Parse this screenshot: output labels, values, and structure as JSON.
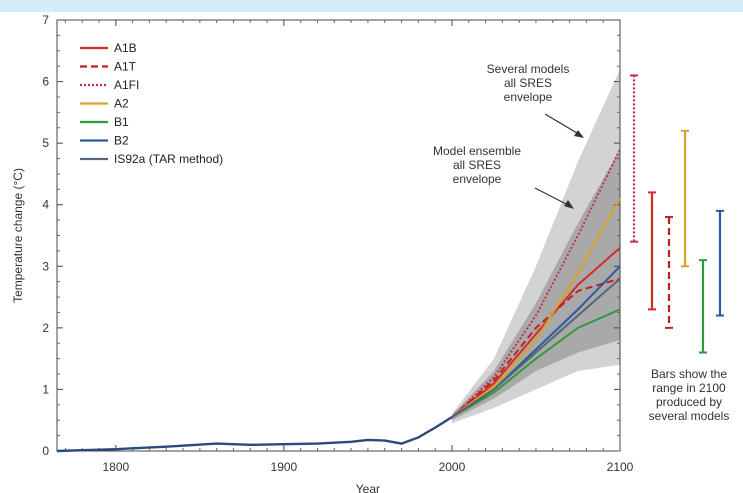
{
  "chart_data": {
    "type": "line",
    "title": "",
    "xlabel": "Year",
    "ylabel": "Temperature change (°C)",
    "xlim": [
      1765,
      2100
    ],
    "ylim": [
      0,
      7
    ],
    "x_ticks": [
      1800,
      1900,
      2000,
      2100
    ],
    "y_ticks": [
      0,
      1,
      2,
      3,
      4,
      5,
      6,
      7
    ],
    "legend_position": "top-left",
    "historical": {
      "x": [
        1765,
        1800,
        1830,
        1860,
        1880,
        1900,
        1920,
        1940,
        1950,
        1960,
        1970,
        1980,
        1990,
        2000
      ],
      "y": [
        0.0,
        0.03,
        0.07,
        0.12,
        0.1,
        0.11,
        0.12,
        0.15,
        0.18,
        0.17,
        0.12,
        0.22,
        0.38,
        0.55
      ]
    },
    "series": [
      {
        "name": "A1B",
        "style": "solid",
        "color": "#d62a2a",
        "x": [
          2000,
          2025,
          2050,
          2075,
          2100
        ],
        "y": [
          0.55,
          1.1,
          1.9,
          2.7,
          3.3
        ]
      },
      {
        "name": "A1T",
        "style": "dashed",
        "color": "#c41f1f",
        "x": [
          2000,
          2025,
          2050,
          2075,
          2100
        ],
        "y": [
          0.55,
          1.15,
          2.0,
          2.6,
          2.8
        ]
      },
      {
        "name": "A1FI",
        "style": "dotted",
        "color": "#c0304f",
        "x": [
          2000,
          2025,
          2050,
          2075,
          2100
        ],
        "y": [
          0.55,
          1.2,
          2.2,
          3.5,
          4.9
        ]
      },
      {
        "name": "A2",
        "style": "solid",
        "color": "#d6a22a",
        "x": [
          2000,
          2025,
          2050,
          2075,
          2100
        ],
        "y": [
          0.55,
          1.05,
          1.8,
          2.9,
          4.1
        ]
      },
      {
        "name": "B1",
        "style": "solid",
        "color": "#2f9a3a",
        "x": [
          2000,
          2025,
          2050,
          2075,
          2100
        ],
        "y": [
          0.55,
          0.95,
          1.5,
          2.0,
          2.3
        ]
      },
      {
        "name": "B2",
        "style": "solid",
        "color": "#2a5aa6",
        "x": [
          2000,
          2025,
          2050,
          2075,
          2100
        ],
        "y": [
          0.55,
          1.0,
          1.65,
          2.3,
          3.0
        ]
      },
      {
        "name": "IS92a (TAR method)",
        "style": "solid",
        "color": "#556677",
        "x": [
          2000,
          2025,
          2050,
          2075,
          2100
        ],
        "y": [
          0.55,
          1.0,
          1.6,
          2.2,
          2.8
        ]
      }
    ],
    "envelopes": [
      {
        "name": "Several models all SRES envelope",
        "color": "#d3d3d3",
        "x": [
          2000,
          2025,
          2050,
          2075,
          2100
        ],
        "lower": [
          0.45,
          0.7,
          1.0,
          1.3,
          1.4
        ],
        "upper": [
          0.6,
          1.5,
          3.0,
          4.7,
          6.2
        ]
      },
      {
        "name": "Model ensemble all SRES envelope",
        "color": "#a9a9a9",
        "x": [
          2000,
          2025,
          2050,
          2075,
          2100
        ],
        "lower": [
          0.5,
          0.85,
          1.3,
          1.6,
          1.8
        ],
        "upper": [
          0.58,
          1.3,
          2.4,
          3.7,
          4.9
        ]
      }
    ],
    "bars_2100": [
      {
        "name": "A1FI",
        "style": "dotted",
        "color": "#c0304f",
        "low": 3.4,
        "high": 6.1
      },
      {
        "name": "A1B",
        "style": "solid",
        "color": "#d62a2a",
        "low": 2.3,
        "high": 4.2
      },
      {
        "name": "A1T",
        "style": "dashed",
        "color": "#c41f1f",
        "low": 2.0,
        "high": 3.8
      },
      {
        "name": "A2",
        "style": "solid",
        "color": "#d6a22a",
        "low": 3.0,
        "high": 5.2
      },
      {
        "name": "B1",
        "style": "solid",
        "color": "#2f9a3a",
        "low": 1.6,
        "high": 3.1
      },
      {
        "name": "B2",
        "style": "solid",
        "color": "#2a5aa6",
        "low": 2.2,
        "high": 3.9
      }
    ],
    "annotations": {
      "several_models": [
        "Several models",
        "all SRES",
        "envelope"
      ],
      "model_ensemble": [
        "Model ensemble",
        "all SRES",
        "envelope"
      ],
      "bars_note": [
        "Bars show the",
        "range in 2100",
        "produced by",
        "several models"
      ]
    }
  }
}
